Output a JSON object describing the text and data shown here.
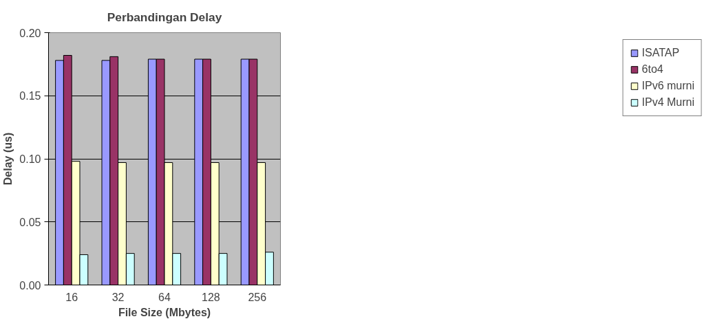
{
  "chart_data": {
    "type": "bar",
    "title": "Perbandingan Delay",
    "xlabel": "File Size (Mbytes)",
    "ylabel": "Delay (us)",
    "categories": [
      "16",
      "32",
      "64",
      "128",
      "256"
    ],
    "series": [
      {
        "name": "ISATAP",
        "color": "#9999ff",
        "values": [
          0.178,
          0.178,
          0.179,
          0.179,
          0.179
        ]
      },
      {
        "name": "6to4",
        "color": "#993366",
        "values": [
          0.182,
          0.181,
          0.179,
          0.179,
          0.179
        ]
      },
      {
        "name": "IPv6 murni",
        "color": "#ffffcc",
        "values": [
          0.098,
          0.097,
          0.097,
          0.097,
          0.097
        ]
      },
      {
        "name": "IPv4 Murni",
        "color": "#ccffff",
        "values": [
          0.024,
          0.025,
          0.025,
          0.025,
          0.026
        ]
      }
    ],
    "ylim": [
      0,
      0.2
    ],
    "yticks": [
      {
        "value": 0,
        "label": "0.00"
      },
      {
        "value": 0.05,
        "label": "0.05"
      },
      {
        "value": 0.1,
        "label": "0.10"
      },
      {
        "value": 0.15,
        "label": "0.15"
      },
      {
        "value": 0.2,
        "label": "0.20"
      }
    ],
    "grid": "y",
    "legend": "right"
  }
}
